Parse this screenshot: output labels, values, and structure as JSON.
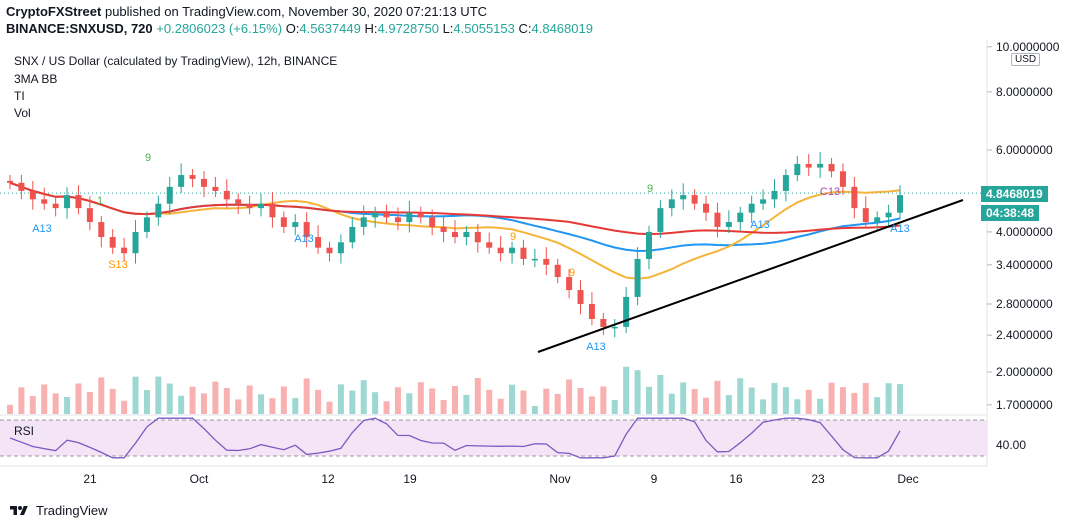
{
  "header": {
    "publisher": "CryptoFXStreet",
    "published_text": " published on TradingView.com, November 30, 2020 07:21:13 UTC",
    "symbol_line": "BINANCE:SNXUSD, 720",
    "change": "+0.2806023 (+6.15%)",
    "o_label": "O:",
    "o_value": "4.5637449",
    "h_label": "H:",
    "h_value": "4.9728750",
    "l_label": "L:",
    "l_value": "4.5055153",
    "c_label": "C:",
    "c_value": "4.8468019"
  },
  "legend": {
    "title": "SNX / US Dollar (calculated by TradingView), 12h, BINANCE",
    "indicator1": "3MA BB",
    "indicator2": "TI",
    "indicator3": "Vol"
  },
  "price_axis": {
    "currency_button": "USD",
    "labels": [
      "10.0000000",
      "8.0000000",
      "6.0000000",
      "4.0000000",
      "3.4000000",
      "2.8000000",
      "2.4000000",
      "2.0000000",
      "1.7000000"
    ],
    "last_price": "4.8468019",
    "countdown": "04:38:48"
  },
  "rsi_pane": {
    "label": "RSI",
    "axis_label": "40.00"
  },
  "time_axis": {
    "labels": [
      "21",
      "Oct",
      "12",
      "19",
      "Nov",
      "9",
      "16",
      "23",
      "Dec"
    ]
  },
  "footer": {
    "brand": "TradingView"
  },
  "colors": {
    "up": "#26a69a",
    "down": "#ef5350",
    "ma_red": "#e53935",
    "ma_orange": "#f5b437",
    "ma_blue": "#2196f3",
    "trendline": "#000000",
    "rsi": "#7e57c2",
    "rsi_band": "#f3e5f5",
    "td_green": "#4caf50",
    "td_orange": "#ff9800",
    "td_blue": "#2196f3",
    "td_purple": "#ab47bc"
  },
  "chart_data": {
    "type": "candlestick",
    "title": "SNX / US Dollar (calculated by TradingView), 12h, BINANCE",
    "last_price": 4.8468019,
    "ylim": [
      1.7,
      10
    ],
    "y_scale": "log",
    "series": [
      {
        "name": "price",
        "values": [
          5.1,
          4.9,
          4.7,
          4.6,
          4.5,
          4.8,
          4.5,
          4.2,
          3.9,
          3.7,
          3.6,
          4.0,
          4.3,
          4.6,
          5.0,
          5.3,
          5.2,
          5.0,
          4.9,
          4.7,
          4.6,
          4.5,
          4.6,
          4.3,
          4.1,
          4.2,
          3.9,
          3.7,
          3.6,
          3.8,
          4.1,
          4.3,
          4.4,
          4.3,
          4.2,
          4.4,
          4.3,
          4.1,
          4.0,
          3.9,
          4.0,
          3.8,
          3.7,
          3.6,
          3.7,
          3.5,
          3.5,
          3.4,
          3.2,
          3.0,
          2.8,
          2.6,
          2.5,
          2.5,
          2.9,
          3.5,
          4.0,
          4.5,
          4.7,
          4.8,
          4.6,
          4.4,
          4.1,
          4.2,
          4.4,
          4.6,
          4.7,
          4.9,
          5.3,
          5.6,
          5.5,
          5.6,
          5.4,
          5.0,
          4.5,
          4.2,
          4.3,
          4.4,
          4.8
        ]
      }
    ],
    "annotations": [
      "9",
      "1",
      "A13",
      "S13",
      "A13",
      "9",
      "9",
      "A13",
      "9",
      "A13",
      "C13",
      "A13"
    ]
  }
}
